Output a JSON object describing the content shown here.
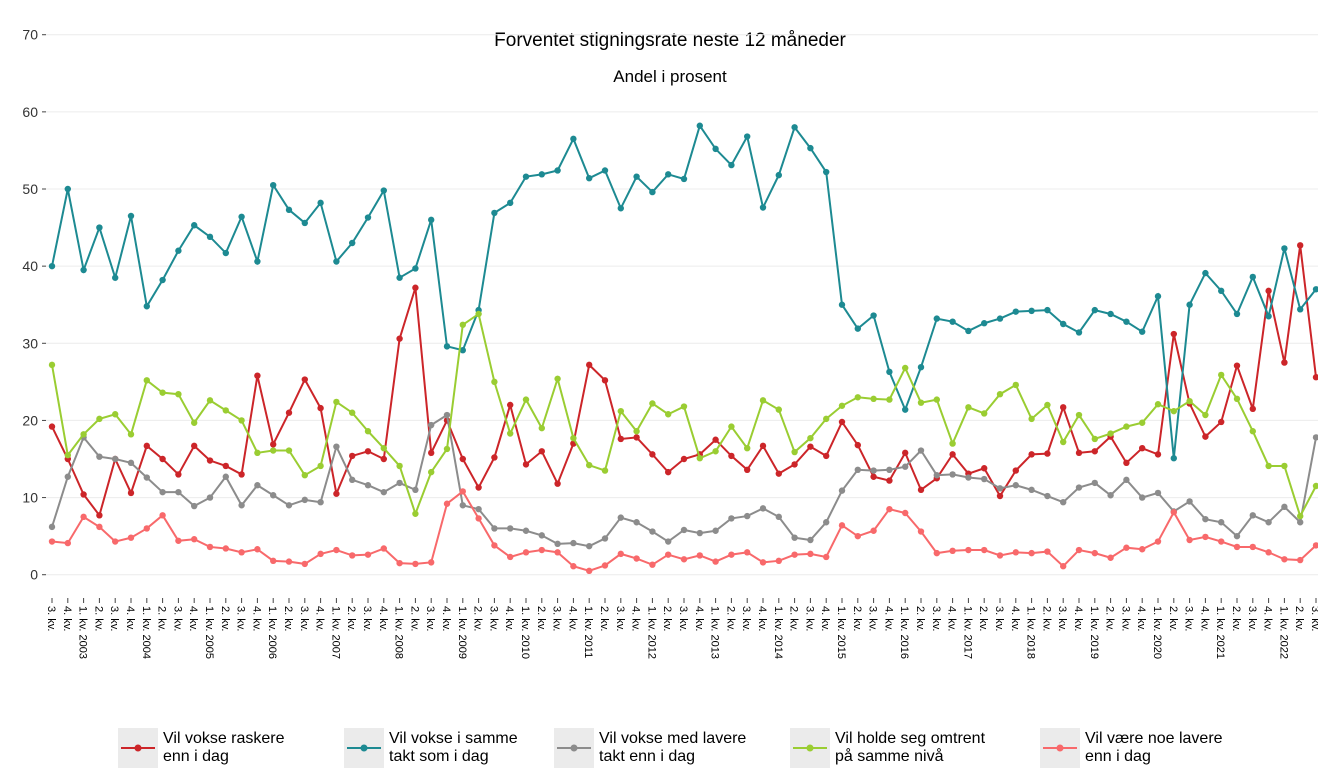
{
  "chart_data": {
    "type": "line",
    "title": "Forventet stigningsrate neste 12 måneder",
    "subtitle": "Andel i prosent",
    "categories": [
      "3. kv.",
      "4. kv.",
      "1. kv. 2003",
      "2. kv.",
      "3. kv.",
      "4. kv.",
      "1. kv. 2004",
      "2. kv.",
      "3. kv.",
      "4. kv.",
      "1. kv. 2005",
      "2. kv.",
      "3. kv.",
      "4. kv.",
      "1. kv. 2006",
      "2. kv.",
      "3. kv.",
      "4. kv.",
      "1. kv. 2007",
      "2. kv.",
      "3. kv.",
      "4. kv.",
      "1. kv. 2008",
      "2. kv.",
      "3. kv.",
      "4. kv.",
      "1. kv. 2009",
      "2. kv.",
      "3. kv.",
      "4. kv.",
      "1. kv. 2010",
      "2. kv.",
      "3. kv.",
      "4. kv.",
      "1. kv. 2011",
      "2. kv.",
      "3. kv.",
      "4. kv.",
      "1. kv. 2012",
      "2. kv.",
      "3. kv.",
      "4. kv.",
      "1. kv. 2013",
      "2. kv.",
      "3. kv.",
      "4. kv.",
      "1. kv. 2014",
      "2. kv.",
      "3. kv.",
      "4. kv.",
      "1. kv. 2015",
      "2. kv.",
      "3. kv.",
      "4. kv.",
      "1. kv. 2016",
      "2. kv.",
      "3. kv.",
      "4. kv.",
      "1. kv. 2017",
      "2. kv.",
      "3. kv.",
      "4. kv.",
      "1. kv. 2018",
      "2. kv.",
      "3. kv.",
      "4. kv.",
      "1. kv. 2019",
      "2. kv.",
      "3. kv.",
      "4. kv.",
      "1. kv. 2020",
      "2. kv.",
      "3. kv.",
      "4. kv.",
      "1. kv. 2021",
      "2. kv.",
      "3. kv.",
      "4. kv.",
      "1. kv. 2022",
      "2. kv.",
      "3. kv."
    ],
    "series": [
      {
        "name": "Vil vokse raskere\nenn i dag",
        "color": "#cc2529",
        "values": [
          19.2,
          15,
          10.4,
          7.7,
          15,
          10.6,
          16.7,
          15,
          13,
          16.7,
          14.8,
          14.1,
          13,
          25.8,
          16.9,
          21,
          25.3,
          21.6,
          10.5,
          15.4,
          16,
          15,
          30.6,
          37.2,
          15.8,
          20,
          15,
          11.3,
          15.2,
          22,
          14.3,
          16,
          11.8,
          17,
          27.2,
          25.2,
          17.6,
          17.8,
          15.6,
          13.3,
          15,
          15.6,
          17.5,
          15.4,
          13.6,
          16.7,
          13.1,
          14.3,
          16.6,
          15.4,
          19.8,
          16.8,
          12.7,
          12.2,
          15.8,
          11,
          12.5,
          15.6,
          13.1,
          13.8,
          10.2,
          13.5,
          15.6,
          15.7,
          21.7,
          15.8,
          16,
          17.9,
          14.5,
          16.4,
          15.6,
          31.2,
          22.2,
          17.9,
          19.8,
          27.1,
          21.5,
          36.8,
          27.5,
          42.7,
          25.6
        ]
      },
      {
        "name": "Vil vokse i samme\ntakt som i dag",
        "color": "#1d8a92",
        "values": [
          40,
          50,
          39.5,
          45,
          38.5,
          46.5,
          34.8,
          38.2,
          42,
          45.3,
          43.8,
          41.7,
          46.4,
          40.6,
          50.5,
          47.3,
          45.6,
          48.2,
          40.6,
          43,
          46.3,
          49.8,
          38.5,
          39.7,
          46,
          29.6,
          29.1,
          34.3,
          46.9,
          48.2,
          51.6,
          51.9,
          52.4,
          56.5,
          51.4,
          52.4,
          47.5,
          51.6,
          49.6,
          51.9,
          51.3,
          58.2,
          55.2,
          53.1,
          56.8,
          47.6,
          51.8,
          58,
          55.3,
          52.2,
          35,
          31.9,
          33.6,
          26.3,
          21.4,
          26.9,
          33.2,
          32.8,
          31.6,
          32.6,
          33.2,
          34.1,
          34.2,
          34.3,
          32.5,
          31.4,
          34.3,
          33.8,
          32.8,
          31.5,
          36.1,
          15.1,
          35,
          39.1,
          36.8,
          33.8,
          38.6,
          33.5,
          42.3,
          34.4,
          37
        ]
      },
      {
        "name": "Vil vokse med lavere\ntakt enn i dag",
        "color": "#8c8c8c",
        "values": [
          6.2,
          12.7,
          17.8,
          15.3,
          15,
          14.5,
          12.6,
          10.7,
          10.7,
          8.9,
          10,
          12.7,
          9,
          11.6,
          10.3,
          9,
          9.7,
          9.4,
          16.6,
          12.3,
          11.6,
          10.7,
          11.9,
          11,
          19.4,
          20.7,
          9,
          8.5,
          6,
          6,
          5.7,
          5.1,
          4,
          4.1,
          3.7,
          4.7,
          7.4,
          6.8,
          5.6,
          4.3,
          5.8,
          5.4,
          5.7,
          7.3,
          7.6,
          8.6,
          7.5,
          4.8,
          4.5,
          6.8,
          10.9,
          13.6,
          13.5,
          13.6,
          14,
          16.1,
          12.9,
          13,
          12.6,
          12.4,
          11.2,
          11.6,
          11,
          10.2,
          9.4,
          11.3,
          11.9,
          10.3,
          12.3,
          10,
          10.6,
          8.2,
          9.5,
          7.2,
          6.8,
          5,
          7.7,
          6.8,
          8.8,
          6.8,
          17.8
        ]
      },
      {
        "name": "Vil holde seg omtrent\npå samme nivå",
        "color": "#9acd32",
        "values": [
          27.2,
          15.5,
          18.2,
          20.2,
          20.8,
          18.2,
          25.2,
          23.6,
          23.4,
          19.7,
          22.6,
          21.3,
          20,
          15.8,
          16.1,
          16.1,
          12.9,
          14.1,
          22.4,
          21,
          18.6,
          16.4,
          14.1,
          7.9,
          13.3,
          16.3,
          32.4,
          33.8,
          25,
          18.3,
          22.7,
          19,
          25.4,
          17.7,
          14.2,
          13.5,
          21.2,
          18.6,
          22.2,
          20.8,
          21.8,
          15.1,
          16,
          19.2,
          16.4,
          22.6,
          21.4,
          15.9,
          17.7,
          20.2,
          21.9,
          23,
          22.8,
          22.7,
          26.8,
          22.3,
          22.7,
          17,
          21.7,
          20.9,
          23.4,
          24.6,
          20.2,
          22,
          17.2,
          20.7,
          17.6,
          18.3,
          19.2,
          19.7,
          22.1,
          21.2,
          22.5,
          20.7,
          25.9,
          22.8,
          18.6,
          14.1,
          14.1,
          7.6,
          11.5
        ]
      },
      {
        "name": "Vil være noe lavere\nenn i dag",
        "color": "#f8696b",
        "values": [
          4.3,
          4.1,
          7.5,
          6.2,
          4.3,
          4.8,
          6,
          7.7,
          4.4,
          4.6,
          3.6,
          3.4,
          2.9,
          3.3,
          1.8,
          1.7,
          1.4,
          2.7,
          3.2,
          2.5,
          2.6,
          3.4,
          1.5,
          1.4,
          1.6,
          9.2,
          10.8,
          7.3,
          3.8,
          2.3,
          2.9,
          3.2,
          2.9,
          1.1,
          0.5,
          1.2,
          2.7,
          2.1,
          1.3,
          2.6,
          2,
          2.5,
          1.7,
          2.6,
          2.9,
          1.6,
          1.8,
          2.6,
          2.7,
          2.3,
          6.4,
          5,
          5.7,
          8.5,
          8,
          5.6,
          2.8,
          3.1,
          3.2,
          3.2,
          2.5,
          2.9,
          2.8,
          3,
          1.1,
          3.2,
          2.8,
          2.2,
          3.5,
          3.3,
          4.3,
          8.1,
          4.5,
          4.9,
          4.3,
          3.6,
          3.6,
          2.9,
          2,
          1.9,
          3.8
        ]
      }
    ],
    "ylim": [
      -2.5,
      74.5
    ],
    "yticks": [
      0,
      10,
      20,
      30,
      40,
      50,
      60,
      70
    ],
    "grid": true,
    "legend": "bottom"
  }
}
